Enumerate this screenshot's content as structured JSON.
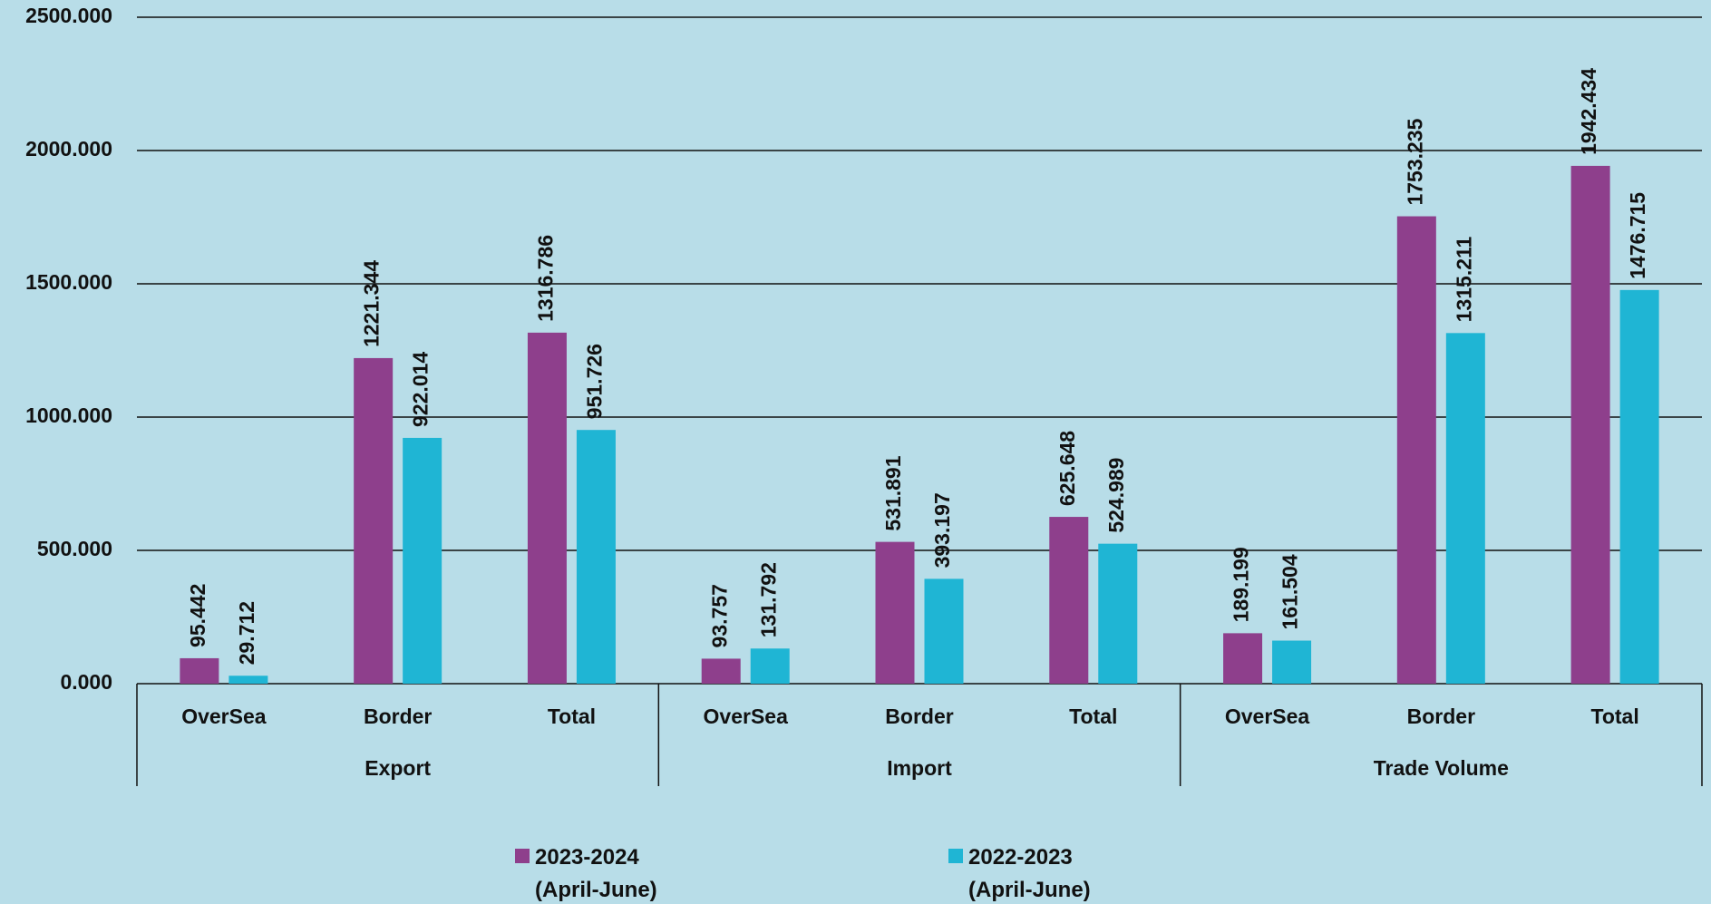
{
  "chart_data": {
    "type": "bar",
    "groups": [
      {
        "name": "Export",
        "categories": [
          "OverSea",
          "Border",
          "Total"
        ]
      },
      {
        "name": "Import",
        "categories": [
          "OverSea",
          "Border",
          "Total"
        ]
      },
      {
        "name": "Trade Volume",
        "categories": [
          "OverSea",
          "Border",
          "Total"
        ]
      }
    ],
    "series": [
      {
        "name": "2023-2024 (April-June)",
        "color": "#8e3f8c",
        "values": [
          95.442,
          1221.344,
          1316.786,
          93.757,
          531.891,
          625.648,
          189.199,
          1753.235,
          1942.434
        ]
      },
      {
        "name": "2022-2023 (April-June)",
        "color": "#1fb5d4",
        "values": [
          29.712,
          922.014,
          951.726,
          131.792,
          393.197,
          524.989,
          161.504,
          1315.211,
          1476.715
        ]
      }
    ],
    "ylim": [
      0,
      2500
    ],
    "yticks": [
      {
        "value": 0,
        "label": "0.000"
      },
      {
        "value": 500,
        "label": "500.000"
      },
      {
        "value": 1000,
        "label": "1000.000"
      },
      {
        "value": 1500,
        "label": "1500.000"
      },
      {
        "value": 2000,
        "label": "2000.000"
      },
      {
        "value": 2500,
        "label": "2500.000"
      }
    ],
    "grid": true,
    "legend": "bottom"
  }
}
